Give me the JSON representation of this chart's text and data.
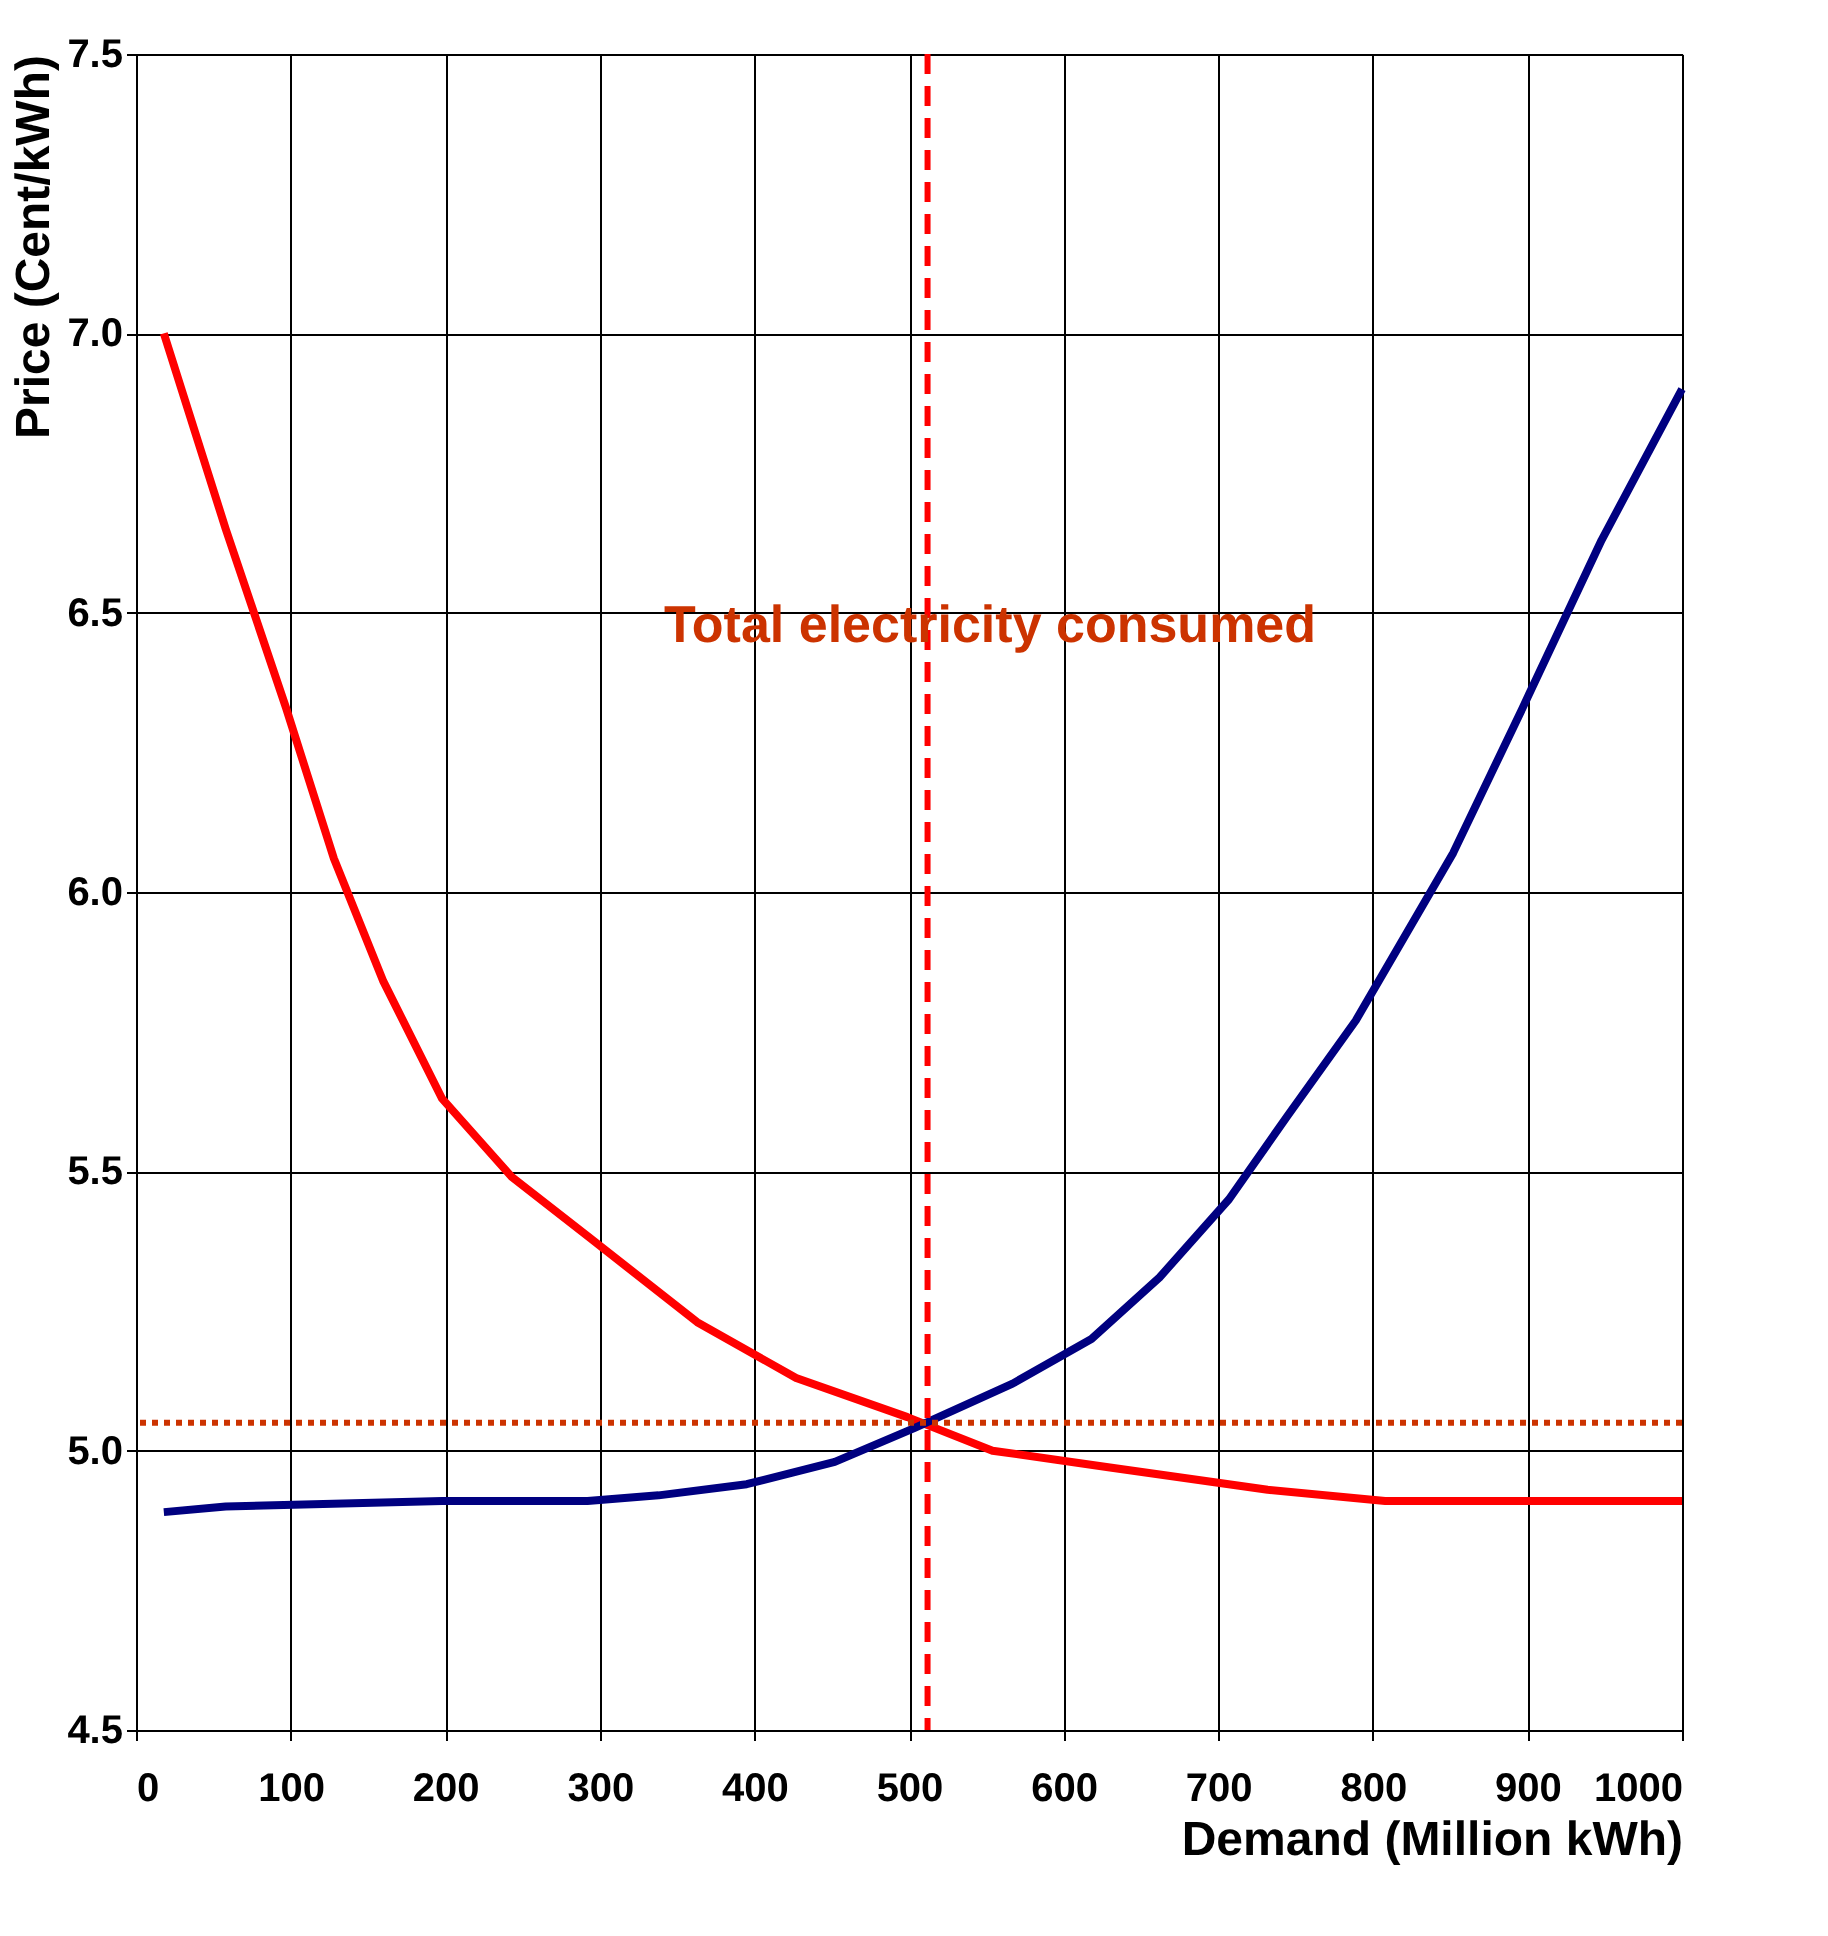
{
  "chart_data": {
    "type": "line",
    "xlabel": "Demand (Million kWh)",
    "ylabel": "Price (Cent/kWh)",
    "xlim": [
      0,
      1000
    ],
    "xticks": [
      0,
      100,
      200,
      300,
      400,
      500,
      600,
      700,
      800,
      900,
      1000
    ],
    "ylim": [
      4.5,
      7.5
    ],
    "yticks": [
      {
        "value": 4.5,
        "label": "4.5"
      },
      {
        "value": 5.0,
        "label": "5.0"
      },
      {
        "value": 5.5,
        "label": "5.5"
      },
      {
        "value": 6.0,
        "label": "6.0"
      },
      {
        "value": 6.5,
        "label": "6.5"
      },
      {
        "value": 7.0,
        "label": "7.0"
      },
      {
        "value": 7.5,
        "label": "7.5"
      }
    ],
    "grid": true,
    "marker": "none",
    "line_style": "solid",
    "series": [
      {
        "color": "#ff0000",
        "x": [
          18,
          58,
          97,
          128,
          160,
          198,
          243,
          294,
          363,
          427,
          499,
          554,
          630,
          732,
          808,
          1000
        ],
        "values": [
          7.0,
          6.65,
          6.33,
          6.06,
          5.84,
          5.63,
          5.49,
          5.38,
          5.23,
          5.13,
          5.06,
          5.0,
          4.97,
          4.93,
          4.91,
          4.91
        ]
      },
      {
        "color": "#000080",
        "x": [
          18,
          58,
          198,
          292,
          338,
          395,
          452,
          503,
          567,
          618,
          662,
          707,
          745,
          789,
          852,
          897,
          948,
          1000
        ],
        "values": [
          4.89,
          4.9,
          4.91,
          4.91,
          4.92,
          4.94,
          4.98,
          5.04,
          5.12,
          5.2,
          5.31,
          5.45,
          5.6,
          5.77,
          6.07,
          6.33,
          6.63,
          6.9
        ]
      }
    ],
    "ref_lines": [
      {
        "axis": "y",
        "value": 5.05,
        "color": "#cc3300",
        "line_style": "dotted"
      },
      {
        "axis": "x",
        "value": 512,
        "color": "#ff0000",
        "line_style": "dashed"
      }
    ],
    "annotations": [
      "Total electricity consumed"
    ]
  }
}
